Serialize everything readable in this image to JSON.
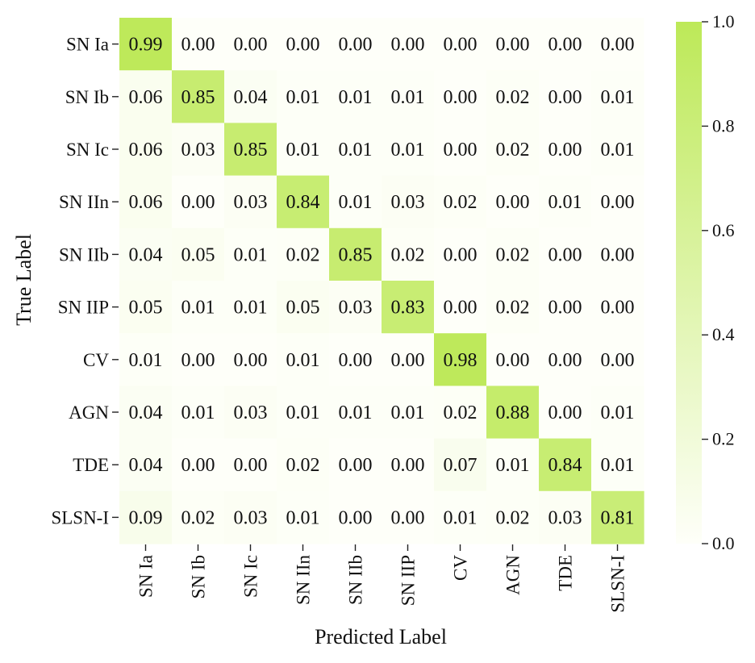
{
  "chart_data": {
    "type": "heatmap",
    "xlabel": "Predicted Label",
    "ylabel": "True Label",
    "x_categories": [
      "SN Ia",
      "SN Ib",
      "SN Ic",
      "SN IIn",
      "SN IIb",
      "SN IIP",
      "CV",
      "AGN",
      "TDE",
      "SLSN-I"
    ],
    "y_categories": [
      "SN Ia",
      "SN Ib",
      "SN Ic",
      "SN IIn",
      "SN IIb",
      "SN IIP",
      "CV",
      "AGN",
      "TDE",
      "SLSN-I"
    ],
    "values": [
      [
        0.99,
        0.0,
        0.0,
        0.0,
        0.0,
        0.0,
        0.0,
        0.0,
        0.0,
        0.0
      ],
      [
        0.06,
        0.85,
        0.04,
        0.01,
        0.01,
        0.01,
        0.0,
        0.02,
        0.0,
        0.01
      ],
      [
        0.06,
        0.03,
        0.85,
        0.01,
        0.01,
        0.01,
        0.0,
        0.02,
        0.0,
        0.01
      ],
      [
        0.06,
        0.0,
        0.03,
        0.84,
        0.01,
        0.03,
        0.02,
        0.0,
        0.01,
        0.0
      ],
      [
        0.04,
        0.05,
        0.01,
        0.02,
        0.85,
        0.02,
        0.0,
        0.02,
        0.0,
        0.0
      ],
      [
        0.05,
        0.01,
        0.01,
        0.05,
        0.03,
        0.83,
        0.0,
        0.02,
        0.0,
        0.0
      ],
      [
        0.01,
        0.0,
        0.0,
        0.01,
        0.0,
        0.0,
        0.98,
        0.0,
        0.0,
        0.0
      ],
      [
        0.04,
        0.01,
        0.03,
        0.01,
        0.01,
        0.01,
        0.02,
        0.88,
        0.0,
        0.01
      ],
      [
        0.04,
        0.0,
        0.0,
        0.02,
        0.0,
        0.0,
        0.07,
        0.01,
        0.84,
        0.01
      ],
      [
        0.09,
        0.02,
        0.03,
        0.01,
        0.0,
        0.0,
        0.01,
        0.02,
        0.03,
        0.81
      ]
    ],
    "colorbar": {
      "range": [
        0.0,
        1.0
      ],
      "ticks": [
        "0.0",
        "0.2",
        "0.4",
        "0.6",
        "0.8",
        "1.0"
      ],
      "color_low": "#fefff9",
      "color_high": "#bde958"
    },
    "grid": false
  }
}
